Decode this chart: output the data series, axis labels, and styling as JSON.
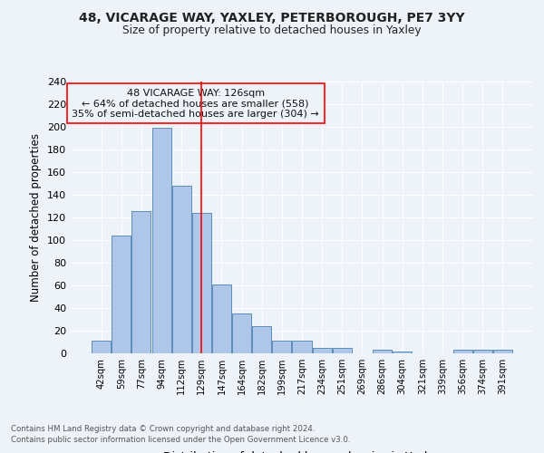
{
  "title1": "48, VICARAGE WAY, YAXLEY, PETERBOROUGH, PE7 3YY",
  "title2": "Size of property relative to detached houses in Yaxley",
  "xlabel": "Distribution of detached houses by size in Yaxley",
  "ylabel": "Number of detached properties",
  "categories": [
    "42sqm",
    "59sqm",
    "77sqm",
    "94sqm",
    "112sqm",
    "129sqm",
    "147sqm",
    "164sqm",
    "182sqm",
    "199sqm",
    "217sqm",
    "234sqm",
    "251sqm",
    "269sqm",
    "286sqm",
    "304sqm",
    "321sqm",
    "339sqm",
    "356sqm",
    "374sqm",
    "391sqm"
  ],
  "values": [
    11,
    104,
    126,
    199,
    148,
    124,
    61,
    35,
    24,
    11,
    11,
    5,
    5,
    0,
    3,
    2,
    0,
    0,
    3,
    3,
    3
  ],
  "bar_color": "#aec6e8",
  "bar_edge_color": "#5b8db8",
  "reference_line_x": 5,
  "ylim": [
    0,
    240
  ],
  "yticks": [
    0,
    20,
    40,
    60,
    80,
    100,
    120,
    140,
    160,
    180,
    200,
    220,
    240
  ],
  "annotation_line1": "48 VICARAGE WAY: 126sqm",
  "annotation_line2": "← 64% of detached houses are smaller (558)",
  "annotation_line3": "35% of semi-detached houses are larger (304) →",
  "footer1": "Contains HM Land Registry data © Crown copyright and database right 2024.",
  "footer2": "Contains public sector information licensed under the Open Government Licence v3.0.",
  "bg_color": "#eef2f9",
  "grid_color": "#ffffff"
}
